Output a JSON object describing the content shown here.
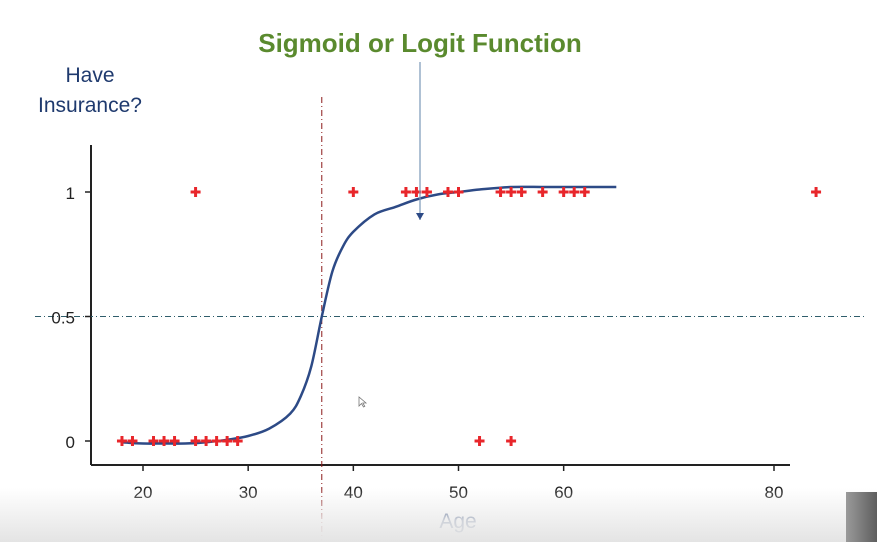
{
  "chart_data": {
    "type": "scatter",
    "title": "Sigmoid or Logit Function",
    "ylabel_line1": "Have",
    "ylabel_line2": "Insurance?",
    "xlabel": "Age",
    "xlim": [
      10,
      85
    ],
    "ylim": [
      -0.1,
      1.2
    ],
    "x_ticks": [
      20,
      30,
      40,
      50,
      60,
      80
    ],
    "y_ticks": [
      0,
      0.5,
      1
    ],
    "y_tick_labels": [
      "0",
      "0.5",
      "1"
    ],
    "grid": false,
    "threshold_y": 0.5,
    "threshold_x": 37,
    "points": {
      "x": [
        18,
        19,
        21,
        22,
        23,
        25,
        26,
        27,
        28,
        29,
        52,
        55,
        25,
        40,
        45,
        46,
        47,
        49,
        50,
        54,
        55,
        56,
        58,
        60,
        61,
        62,
        84
      ],
      "y": [
        0,
        0,
        0,
        0,
        0,
        0,
        0,
        0,
        0,
        0,
        0,
        0,
        1,
        1,
        1,
        1,
        1,
        1,
        1,
        1,
        1,
        1,
        1,
        1,
        1,
        1,
        1
      ]
    },
    "curve": {
      "x": [
        18,
        20,
        22,
        24,
        26,
        28,
        30,
        32,
        34,
        35,
        36,
        37,
        38,
        39,
        40,
        42,
        44,
        46,
        48,
        50,
        52,
        55,
        58,
        60,
        62,
        65
      ],
      "y": [
        -0.005,
        -0.01,
        -0.01,
        -0.01,
        -0.005,
        0.005,
        0.02,
        0.05,
        0.11,
        0.18,
        0.3,
        0.5,
        0.68,
        0.78,
        0.84,
        0.91,
        0.94,
        0.97,
        0.99,
        1.0,
        1.01,
        1.02,
        1.02,
        1.02,
        1.02,
        1.02
      ]
    },
    "colors": {
      "title": "#5a8a2e",
      "label": "#1f3a6e",
      "curve": "#2d4a86",
      "points": "#e8262b",
      "threshold_v": "#8b1a1a",
      "threshold_h": "#2f5d6b",
      "axis": "#222222",
      "arrow": "#7a98b8"
    }
  }
}
